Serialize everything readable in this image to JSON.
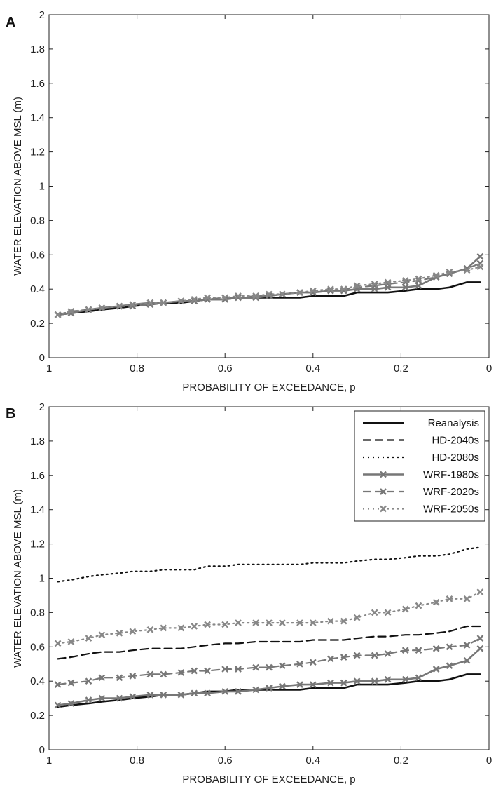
{
  "chart_data": [
    {
      "type": "line",
      "panel": "A",
      "xlabel": "PROBABILITY OF EXCEEDANCE, p",
      "ylabel": "WATER ELEVATION ABOVE MSL (m)",
      "xlim": [
        1,
        0
      ],
      "ylim": [
        0,
        2
      ],
      "x_ticks": [
        "1",
        "0.8",
        "0.6",
        "0.4",
        "0.2",
        "0"
      ],
      "y_ticks": [
        "0",
        "0.2",
        "0.4",
        "0.6",
        "0.8",
        "1",
        "1.2",
        "1.4",
        "1.6",
        "1.8",
        "2"
      ],
      "x": [
        0.98,
        0.95,
        0.91,
        0.88,
        0.84,
        0.81,
        0.77,
        0.74,
        0.7,
        0.67,
        0.64,
        0.6,
        0.57,
        0.53,
        0.5,
        0.47,
        0.43,
        0.4,
        0.36,
        0.33,
        0.3,
        0.26,
        0.23,
        0.19,
        0.16,
        0.12,
        0.09,
        0.05,
        0.02
      ],
      "series": [
        {
          "name": "Reanalysis",
          "color": "#111111",
          "style": "solid",
          "marker": false,
          "values": [
            0.25,
            0.26,
            0.27,
            0.28,
            0.29,
            0.3,
            0.31,
            0.32,
            0.32,
            0.33,
            0.34,
            0.34,
            0.35,
            0.35,
            0.35,
            0.35,
            0.35,
            0.36,
            0.36,
            0.36,
            0.38,
            0.38,
            0.38,
            0.39,
            0.4,
            0.4,
            0.41,
            0.44,
            0.44
          ]
        },
        {
          "name": "WRF-1980s",
          "color": "#777777",
          "style": "solid",
          "marker": true,
          "values": [
            0.25,
            0.26,
            0.28,
            0.29,
            0.3,
            0.31,
            0.32,
            0.32,
            0.33,
            0.33,
            0.34,
            0.34,
            0.35,
            0.35,
            0.36,
            0.37,
            0.38,
            0.38,
            0.39,
            0.39,
            0.4,
            0.4,
            0.41,
            0.41,
            0.42,
            0.47,
            0.49,
            0.52,
            0.59
          ]
        },
        {
          "name": "WRF-2020s",
          "color": "#777777",
          "style": "dashed",
          "marker": true,
          "values": [
            0.25,
            0.27,
            0.28,
            0.29,
            0.3,
            0.3,
            0.31,
            0.32,
            0.33,
            0.33,
            0.34,
            0.35,
            0.35,
            0.36,
            0.36,
            0.37,
            0.38,
            0.38,
            0.39,
            0.4,
            0.41,
            0.42,
            0.43,
            0.44,
            0.45,
            0.47,
            0.49,
            0.52,
            0.55
          ]
        },
        {
          "name": "WRF-2050s",
          "color": "#888888",
          "style": "dotted",
          "marker": true,
          "values": [
            0.25,
            0.27,
            0.28,
            0.29,
            0.3,
            0.31,
            0.32,
            0.32,
            0.33,
            0.34,
            0.35,
            0.35,
            0.36,
            0.36,
            0.37,
            0.37,
            0.38,
            0.39,
            0.4,
            0.4,
            0.42,
            0.43,
            0.44,
            0.45,
            0.46,
            0.48,
            0.5,
            0.51,
            0.53
          ]
        }
      ]
    },
    {
      "type": "line",
      "panel": "B",
      "xlabel": "PROBABILITY OF EXCEEDANCE, p",
      "ylabel": "WATER ELEVATION ABOVE MSL (m)",
      "xlim": [
        1,
        0
      ],
      "ylim": [
        0,
        2
      ],
      "x_ticks": [
        "1",
        "0.8",
        "0.6",
        "0.4",
        "0.2",
        "0"
      ],
      "y_ticks": [
        "0",
        "0.2",
        "0.4",
        "0.6",
        "0.8",
        "1",
        "1.2",
        "1.4",
        "1.6",
        "1.8",
        "2"
      ],
      "legend_position": "top-right",
      "x": [
        0.98,
        0.95,
        0.91,
        0.88,
        0.84,
        0.81,
        0.77,
        0.74,
        0.7,
        0.67,
        0.64,
        0.6,
        0.57,
        0.53,
        0.5,
        0.47,
        0.43,
        0.4,
        0.36,
        0.33,
        0.3,
        0.26,
        0.23,
        0.19,
        0.16,
        0.12,
        0.09,
        0.05,
        0.02
      ],
      "series": [
        {
          "name": "Reanalysis",
          "color": "#111111",
          "style": "solid",
          "marker": false,
          "values": [
            0.25,
            0.26,
            0.27,
            0.28,
            0.29,
            0.3,
            0.31,
            0.32,
            0.32,
            0.33,
            0.34,
            0.34,
            0.35,
            0.35,
            0.35,
            0.35,
            0.35,
            0.36,
            0.36,
            0.36,
            0.38,
            0.38,
            0.38,
            0.39,
            0.4,
            0.4,
            0.41,
            0.44,
            0.44
          ]
        },
        {
          "name": "HD-2040s",
          "color": "#111111",
          "style": "dashed",
          "marker": false,
          "values": [
            0.53,
            0.54,
            0.56,
            0.57,
            0.57,
            0.58,
            0.59,
            0.59,
            0.59,
            0.6,
            0.61,
            0.62,
            0.62,
            0.63,
            0.63,
            0.63,
            0.63,
            0.64,
            0.64,
            0.64,
            0.65,
            0.66,
            0.66,
            0.67,
            0.67,
            0.68,
            0.69,
            0.72,
            0.72
          ]
        },
        {
          "name": "HD-2080s",
          "color": "#111111",
          "style": "dotted",
          "marker": false,
          "values": [
            0.98,
            0.99,
            1.01,
            1.02,
            1.03,
            1.04,
            1.04,
            1.05,
            1.05,
            1.05,
            1.07,
            1.07,
            1.08,
            1.08,
            1.08,
            1.08,
            1.08,
            1.09,
            1.09,
            1.09,
            1.1,
            1.11,
            1.11,
            1.12,
            1.13,
            1.13,
            1.14,
            1.17,
            1.18
          ]
        },
        {
          "name": "WRF-1980s",
          "color": "#777777",
          "style": "solid",
          "marker": true,
          "values": [
            0.26,
            0.27,
            0.29,
            0.3,
            0.3,
            0.31,
            0.32,
            0.32,
            0.32,
            0.33,
            0.33,
            0.34,
            0.34,
            0.35,
            0.36,
            0.37,
            0.38,
            0.38,
            0.39,
            0.39,
            0.4,
            0.4,
            0.41,
            0.41,
            0.42,
            0.47,
            0.49,
            0.52,
            0.59
          ]
        },
        {
          "name": "WRF-2020s",
          "color": "#777777",
          "style": "dashed",
          "marker": true,
          "values": [
            0.38,
            0.39,
            0.4,
            0.42,
            0.42,
            0.43,
            0.44,
            0.44,
            0.45,
            0.46,
            0.46,
            0.47,
            0.47,
            0.48,
            0.48,
            0.49,
            0.5,
            0.51,
            0.53,
            0.54,
            0.55,
            0.55,
            0.56,
            0.58,
            0.58,
            0.59,
            0.6,
            0.61,
            0.65
          ]
        },
        {
          "name": "WRF-2050s",
          "color": "#888888",
          "style": "dotted",
          "marker": true,
          "values": [
            0.62,
            0.63,
            0.65,
            0.67,
            0.68,
            0.69,
            0.7,
            0.71,
            0.71,
            0.72,
            0.73,
            0.73,
            0.74,
            0.74,
            0.74,
            0.74,
            0.74,
            0.74,
            0.75,
            0.75,
            0.77,
            0.8,
            0.8,
            0.82,
            0.84,
            0.86,
            0.88,
            0.88,
            0.92
          ]
        }
      ]
    }
  ]
}
